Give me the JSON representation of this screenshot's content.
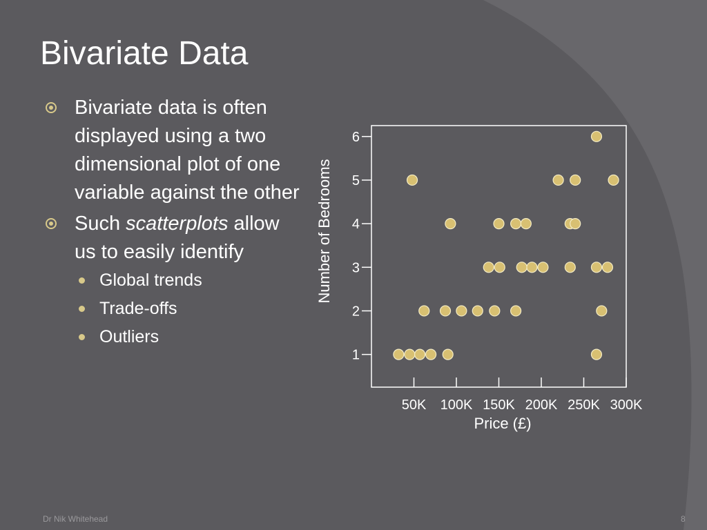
{
  "slide": {
    "title": "Bivariate Data",
    "bullets": [
      {
        "text": "Bivariate data is often displayed using a two dimensional plot of one variable against the other"
      },
      {
        "text_before": "Such ",
        "text_em": "scatterplots",
        "text_after": " allow us to easily identify",
        "sub_items": [
          "Global trends",
          "Trade-offs",
          "Outliers"
        ]
      }
    ],
    "footer": "Dr Nik Whitehead",
    "page_number": "8",
    "colors": {
      "background": "#5b5a5e",
      "accent": "#d8c98a",
      "text": "#ffffff"
    }
  },
  "chart_data": {
    "type": "scatter",
    "xlabel": "Price (£)",
    "ylabel": "Number of Bedrooms",
    "x_ticks": [
      50000,
      100000,
      150000,
      200000,
      250000,
      300000
    ],
    "x_tick_labels": [
      "50K",
      "100K",
      "150K",
      "200K",
      "250K",
      "300K"
    ],
    "y_ticks": [
      1,
      2,
      3,
      4,
      5,
      6
    ],
    "y_tick_labels": [
      "1",
      "2",
      "3",
      "4",
      "5",
      "6"
    ],
    "xlim": [
      0,
      300000
    ],
    "ylim": [
      0.25,
      6.25
    ],
    "grid": false,
    "marker_color": "#d8c072",
    "points": [
      {
        "x": 32000,
        "y": 1
      },
      {
        "x": 45000,
        "y": 1
      },
      {
        "x": 57000,
        "y": 1
      },
      {
        "x": 70000,
        "y": 1
      },
      {
        "x": 90000,
        "y": 1
      },
      {
        "x": 265000,
        "y": 1
      },
      {
        "x": 62000,
        "y": 2
      },
      {
        "x": 87000,
        "y": 2
      },
      {
        "x": 106000,
        "y": 2
      },
      {
        "x": 125000,
        "y": 2
      },
      {
        "x": 145000,
        "y": 2
      },
      {
        "x": 170000,
        "y": 2
      },
      {
        "x": 271000,
        "y": 2
      },
      {
        "x": 138000,
        "y": 3
      },
      {
        "x": 151000,
        "y": 3
      },
      {
        "x": 177000,
        "y": 3
      },
      {
        "x": 189000,
        "y": 3
      },
      {
        "x": 202000,
        "y": 3
      },
      {
        "x": 234000,
        "y": 3
      },
      {
        "x": 265000,
        "y": 3
      },
      {
        "x": 278000,
        "y": 3
      },
      {
        "x": 93000,
        "y": 4
      },
      {
        "x": 150000,
        "y": 4
      },
      {
        "x": 170000,
        "y": 4
      },
      {
        "x": 182000,
        "y": 4
      },
      {
        "x": 234000,
        "y": 4
      },
      {
        "x": 240000,
        "y": 4
      },
      {
        "x": 48000,
        "y": 5
      },
      {
        "x": 220000,
        "y": 5
      },
      {
        "x": 240000,
        "y": 5
      },
      {
        "x": 285000,
        "y": 5
      },
      {
        "x": 265000,
        "y": 6
      }
    ]
  }
}
